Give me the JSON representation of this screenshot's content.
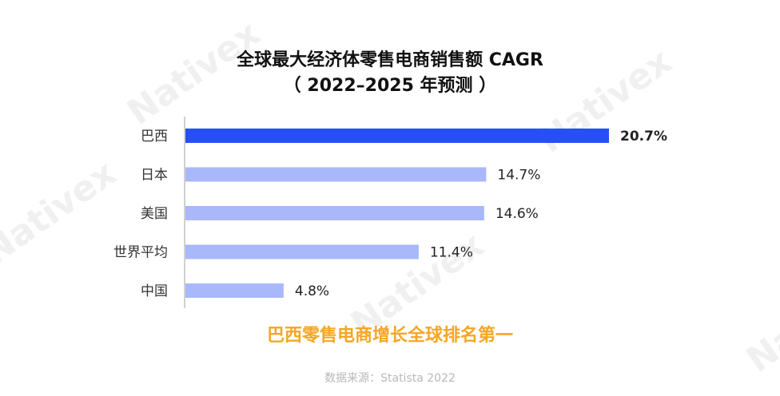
{
  "watermark": "Nativex",
  "title": {
    "line1": "全球最大经济体零售电商销售额 CAGR",
    "line2": "（ 2022–2025 年预测 ）"
  },
  "chart_data": {
    "type": "bar",
    "orientation": "horizontal",
    "categories": [
      "巴西",
      "日本",
      "美国",
      "世界平均",
      "中国"
    ],
    "values": [
      20.7,
      14.7,
      14.6,
      11.4,
      4.8
    ],
    "value_labels": [
      "20.7%",
      "14.7%",
      "14.6%",
      "11.4%",
      "4.8%"
    ],
    "xlim": [
      0,
      20.7
    ],
    "highlight_index": 0,
    "colors": {
      "highlight": "#2650f5",
      "default": "#a9b8fb",
      "axis": "#d0d0d0",
      "category_text": "#333333",
      "label_text": "#222222"
    }
  },
  "highlight_text": "巴西零售电商增长全球排名第一",
  "source": "数据来源：Statista 2022"
}
